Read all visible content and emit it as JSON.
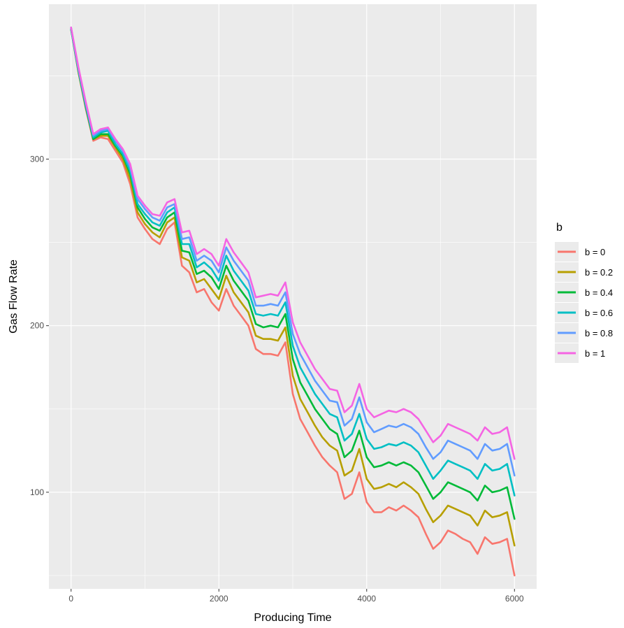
{
  "chart_data": {
    "type": "line",
    "title": "",
    "xlabel": "Producing Time",
    "ylabel": "Gas Flow Rate",
    "xlim": [
      -300,
      6300
    ],
    "ylim": [
      42,
      393
    ],
    "x_ticks": [
      0,
      2000,
      4000,
      6000
    ],
    "x_tick_labels": [
      "0",
      "2000",
      "4000",
      "6000"
    ],
    "y_ticks": [
      100,
      200,
      300
    ],
    "y_tick_labels": [
      "100",
      "200",
      "300"
    ],
    "grid": true,
    "legend": {
      "title": "b",
      "position": "right"
    },
    "colors": {
      "panel_background": "#EBEBEB",
      "grid": "#FFFFFF"
    },
    "x": [
      0,
      100,
      200,
      300,
      400,
      500,
      600,
      700,
      800,
      900,
      1000,
      1100,
      1200,
      1300,
      1400,
      1500,
      1600,
      1700,
      1800,
      1900,
      2000,
      2100,
      2200,
      2300,
      2400,
      2500,
      2600,
      2700,
      2800,
      2900,
      3000,
      3100,
      3200,
      3300,
      3400,
      3500,
      3600,
      3700,
      3800,
      3900,
      4000,
      4100,
      4200,
      4300,
      4400,
      4500,
      4600,
      4700,
      4800,
      4900,
      5000,
      5100,
      5200,
      5300,
      5400,
      5500,
      5600,
      5700,
      5800,
      5900,
      6000
    ],
    "series": [
      {
        "name": "b = 0",
        "color": "#F8766D",
        "values": [
          378,
          352,
          330,
          311,
          313,
          312,
          305,
          298,
          285,
          265,
          258,
          252,
          249,
          258,
          262,
          236,
          232,
          220,
          222,
          214,
          209,
          222,
          212,
          206,
          200,
          186,
          183,
          183,
          182,
          190,
          159,
          144,
          136,
          128,
          121,
          116,
          112,
          96,
          99,
          112,
          94,
          88,
          88,
          91,
          89,
          92,
          89,
          85,
          75,
          66,
          70,
          77,
          75,
          72,
          70,
          63,
          73,
          69,
          70,
          72,
          50
        ]
      },
      {
        "name": "b = 0.2",
        "color": "#B79F00",
        "values": [
          378,
          352,
          331,
          312,
          314,
          314,
          307,
          300,
          288,
          268,
          261,
          256,
          253,
          262,
          265,
          241,
          239,
          226,
          228,
          222,
          216,
          230,
          220,
          214,
          208,
          194,
          192,
          192,
          191,
          199,
          170,
          156,
          148,
          140,
          133,
          128,
          125,
          110,
          113,
          126,
          108,
          102,
          103,
          105,
          103,
          106,
          103,
          99,
          90,
          82,
          86,
          92,
          90,
          88,
          86,
          80,
          89,
          85,
          86,
          88,
          68
        ]
      },
      {
        "name": "b = 0.4",
        "color": "#00BA38",
        "values": [
          378,
          353,
          331,
          312,
          315,
          315,
          308,
          302,
          291,
          271,
          264,
          259,
          257,
          265,
          268,
          245,
          244,
          231,
          233,
          229,
          222,
          236,
          227,
          221,
          215,
          201,
          199,
          200,
          199,
          207,
          180,
          166,
          158,
          150,
          144,
          138,
          135,
          121,
          125,
          137,
          121,
          115,
          116,
          118,
          116,
          118,
          116,
          112,
          104,
          96,
          100,
          106,
          104,
          102,
          100,
          95,
          104,
          100,
          101,
          103,
          84
        ]
      },
      {
        "name": "b = 0.6",
        "color": "#00BFC4",
        "values": [
          378,
          353,
          332,
          313,
          316,
          317,
          309,
          303,
          293,
          273,
          267,
          262,
          260,
          268,
          271,
          249,
          249,
          235,
          238,
          234,
          227,
          242,
          233,
          227,
          221,
          207,
          206,
          207,
          206,
          214,
          188,
          175,
          167,
          159,
          153,
          147,
          145,
          131,
          135,
          147,
          132,
          126,
          127,
          129,
          128,
          130,
          128,
          124,
          116,
          108,
          113,
          119,
          117,
          115,
          113,
          108,
          117,
          113,
          114,
          117,
          98
        ]
      },
      {
        "name": "b = 0.8",
        "color": "#619CFF",
        "values": [
          379,
          354,
          333,
          314,
          317,
          318,
          311,
          305,
          295,
          276,
          270,
          265,
          263,
          271,
          273,
          252,
          253,
          239,
          242,
          239,
          232,
          247,
          239,
          233,
          227,
          212,
          212,
          213,
          212,
          220,
          195,
          183,
          175,
          167,
          161,
          155,
          154,
          140,
          144,
          157,
          142,
          136,
          138,
          140,
          139,
          141,
          139,
          135,
          127,
          120,
          124,
          131,
          129,
          127,
          125,
          120,
          129,
          125,
          126,
          129,
          110
        ]
      },
      {
        "name": "b = 1",
        "color": "#F564E3",
        "values": [
          379,
          355,
          334,
          315,
          318,
          319,
          312,
          306,
          297,
          278,
          272,
          267,
          266,
          274,
          276,
          256,
          257,
          243,
          246,
          243,
          236,
          252,
          244,
          238,
          232,
          217,
          218,
          219,
          218,
          226,
          202,
          190,
          182,
          174,
          168,
          162,
          161,
          148,
          152,
          165,
          150,
          145,
          147,
          149,
          148,
          150,
          148,
          144,
          137,
          130,
          134,
          141,
          139,
          137,
          135,
          131,
          139,
          135,
          136,
          139,
          120
        ]
      }
    ]
  }
}
